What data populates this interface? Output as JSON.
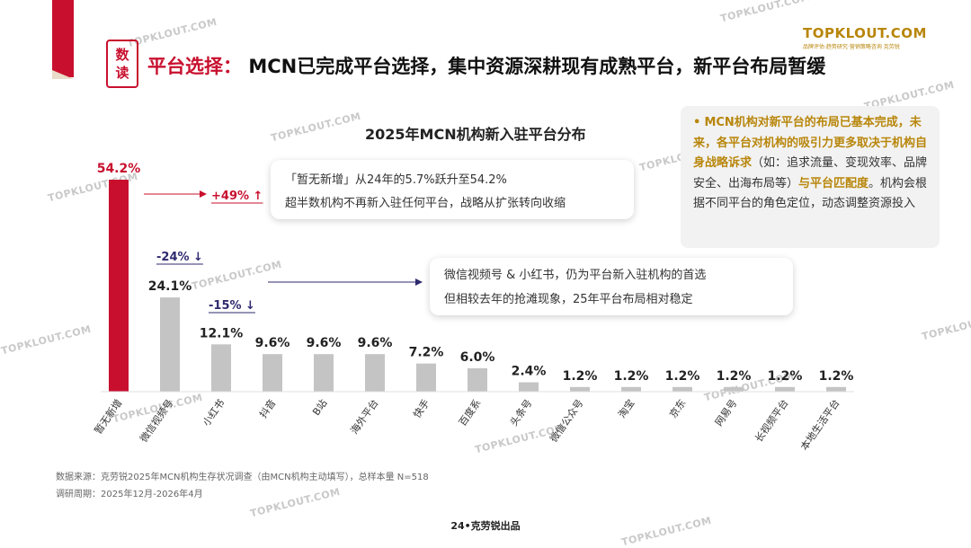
{
  "header": {
    "badge_top": "数",
    "badge_bottom": "读",
    "title_highlight": "平台选择：",
    "title_main": "MCN已完成平台选择，集中资源深耕现有成熟平台，新平台布局暂缓"
  },
  "logo": {
    "main": "TOPKLOUT.COM",
    "sub": "品牌评估·趋势研究·营销策略咨询   克劳锐"
  },
  "watermark": "TOPKLOUT.COM",
  "chart_data": {
    "type": "bar",
    "title": "2025年MCN机构新入驻平台分布",
    "categories": [
      "暂无新增",
      "微信视频号",
      "小红书",
      "抖音",
      "B站",
      "海外平台",
      "快手",
      "百度系",
      "头条号",
      "微信公众号",
      "淘宝",
      "京东",
      "网易号",
      "长视频平台",
      "本地生活平台"
    ],
    "values": [
      54.2,
      24.1,
      12.1,
      9.6,
      9.6,
      9.6,
      7.2,
      6.0,
      2.4,
      1.2,
      1.2,
      1.2,
      1.2,
      1.2,
      1.2
    ],
    "value_labels": [
      "54.2%",
      "24.1%",
      "12.1%",
      "9.6%",
      "9.6%",
      "9.6%",
      "7.2%",
      "6.0%",
      "2.4%",
      "1.2%",
      "1.2%",
      "1.2%",
      "1.2%",
      "1.2%",
      "1.2%"
    ],
    "ylim": [
      0,
      60
    ],
    "colors": {
      "highlight": "#c8102e",
      "default": "#c4c4c4"
    },
    "grid": false,
    "annotations": [
      {
        "category": "暂无新增",
        "text": "+49% ↑"
      },
      {
        "category": "微信视频号",
        "text": "-24% ↓"
      },
      {
        "category": "小红书",
        "text": "-15% ↓"
      }
    ]
  },
  "callouts": {
    "first": {
      "line1": "「暂无新增」从24年的5.7%跃升至54.2%",
      "line2": "超半数机构不再新入驻任何平台，战略从扩张转向收缩"
    },
    "second": {
      "line1": "微信视频号 & 小红书，仍为平台新入驻机构的首选",
      "line2": "但相较去年的抢滩现象，25年平台布局相对稳定"
    }
  },
  "sidebar": {
    "bullet": "•",
    "part1": "MCN机构对新平台的布局已基本完成，未来，各平台对机构的吸引力更多取决于机构自身战略诉求",
    "part2": "（如：追求流量、变现效率、品牌安全、出海布局等）",
    "part3": "与平台匹配度",
    "part4": "。机构会根据不同平台的角色定位，动态调整资源投入"
  },
  "footer": {
    "source": "数据来源：克劳锐2025年MCN机构生存状况调查（由MCN机构主动填写），总样本量 N=518",
    "period": "调研周期：2025年12月-2026年4月",
    "page": "24•克劳锐出品"
  }
}
